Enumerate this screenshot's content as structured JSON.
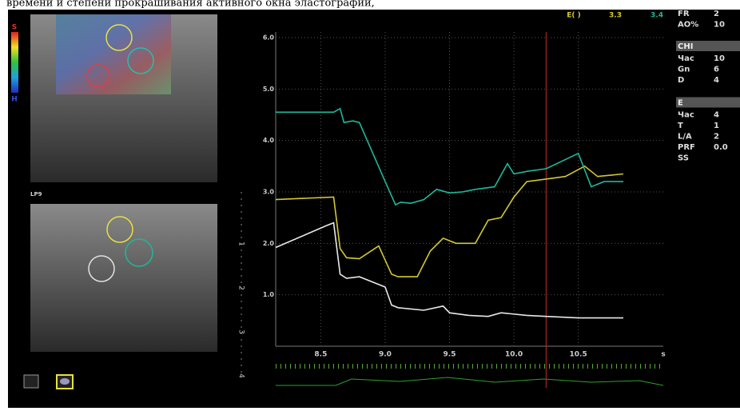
{
  "caption": "времени и степени  прокрашивания  активного окна эластографии,",
  "color_bar": {
    "top": "S",
    "bottom": "H"
  },
  "probe_label": "LP9",
  "depth_scale": [
    "1",
    "2",
    "3",
    "4"
  ],
  "side_panel": {
    "top_rows": [
      [
        "FR",
        "2"
      ],
      [
        "AO%",
        "10"
      ]
    ],
    "sections": [
      {
        "title": "CHI",
        "rows": [
          [
            "Час",
            "10"
          ],
          [
            "Gn",
            "6"
          ],
          [
            "D",
            "4"
          ]
        ]
      },
      {
        "title": "E",
        "rows": [
          [
            "Час",
            "4"
          ],
          [
            "T",
            "1"
          ],
          [
            "L/A",
            "2"
          ],
          [
            "PRF",
            "0.0"
          ],
          [
            "SS"
          ]
        ]
      }
    ]
  },
  "chart_data": {
    "type": "line",
    "legend_title": "E( )",
    "x_unit": "s",
    "xlim": [
      8.15,
      11.16
    ],
    "ylim": [
      0,
      6
    ],
    "xticks": [
      8.5,
      {
        "value": 9,
        "label": "9.0"
      },
      9.5,
      {
        "value": 10,
        "label": "10.0"
      },
      10.5
    ],
    "yticks": [
      {
        "value": 1,
        "label": "1.0"
      },
      {
        "value": 2,
        "label": "2.0"
      },
      {
        "value": 3,
        "label": "3.0"
      },
      {
        "value": 4,
        "label": "4.0"
      },
      {
        "value": 5,
        "label": "5.0"
      },
      {
        "value": 6,
        "label": "6.0"
      }
    ],
    "grid": true,
    "cursor_x": 10.25,
    "cursor_color": "#c0282c",
    "series": [
      {
        "name": "3.3",
        "color": "#d4c832",
        "x": [
          8.15,
          8.6,
          8.65,
          8.7,
          8.8,
          8.95,
          9.05,
          9.1,
          9.25,
          9.35,
          9.45,
          9.55,
          9.7,
          9.8,
          9.9,
          10.0,
          10.1,
          10.25,
          10.4,
          10.55,
          10.65,
          10.85
        ],
        "values": [
          2.85,
          2.9,
          1.9,
          1.72,
          1.7,
          1.95,
          1.4,
          1.35,
          1.35,
          1.85,
          2.1,
          2.0,
          2.0,
          2.45,
          2.5,
          2.9,
          3.2,
          3.25,
          3.3,
          3.5,
          3.3,
          3.35
        ]
      },
      {
        "name": "3.4",
        "color": "#1fb89a",
        "x": [
          8.15,
          8.6,
          8.65,
          8.68,
          8.75,
          8.8,
          9.0,
          9.08,
          9.12,
          9.2,
          9.3,
          9.4,
          9.5,
          9.6,
          9.7,
          9.85,
          9.95,
          10.0,
          10.1,
          10.25,
          10.5,
          10.6,
          10.7,
          10.85
        ],
        "values": [
          4.55,
          4.55,
          4.62,
          4.35,
          4.38,
          4.35,
          3.2,
          2.75,
          2.8,
          2.78,
          2.85,
          3.05,
          2.98,
          3.0,
          3.05,
          3.1,
          3.55,
          3.35,
          3.4,
          3.45,
          3.75,
          3.1,
          3.2,
          3.2
        ]
      },
      {
        "color": "#e8e8e8",
        "x": [
          8.15,
          8.55,
          8.6,
          8.65,
          8.7,
          8.8,
          9.0,
          9.05,
          9.1,
          9.3,
          9.45,
          9.5,
          9.65,
          9.8,
          9.9,
          10.1,
          10.25,
          10.5,
          10.85
        ],
        "values": [
          1.92,
          2.35,
          2.4,
          1.4,
          1.32,
          1.35,
          1.15,
          0.8,
          0.75,
          0.7,
          0.78,
          0.65,
          0.6,
          0.58,
          0.65,
          0.6,
          0.58,
          0.55,
          0.55
        ]
      }
    ]
  }
}
